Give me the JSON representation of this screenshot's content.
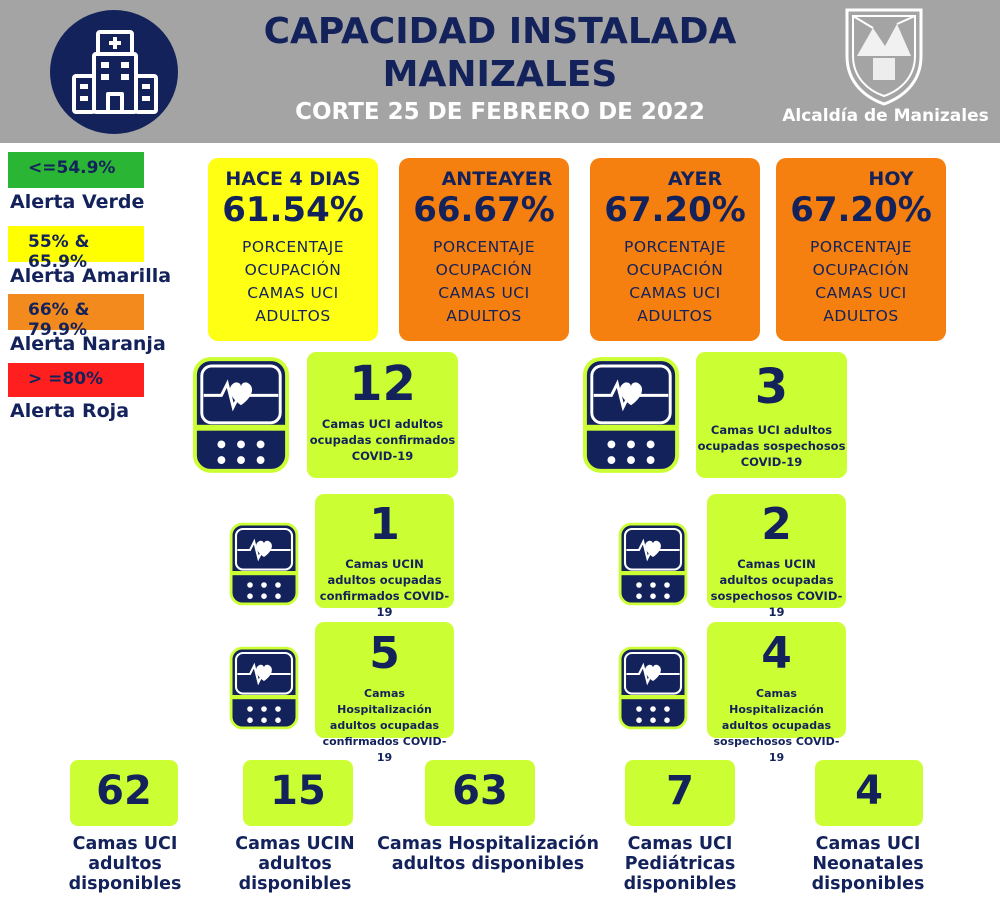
{
  "header": {
    "title_line1": "CAPACIDAD INSTALADA",
    "title_line2": "MANIZALES",
    "subtitle": "CORTE 25 DE FEBRERO DE 2022",
    "org": "Alcaldía de Manizales"
  },
  "legend": [
    {
      "range": "<=54.9%",
      "label": "Alerta Verde",
      "color": "#2bb534"
    },
    {
      "range": "55% & 65.9%",
      "label": "Alerta Amarilla",
      "color": "#ffff00"
    },
    {
      "range": "66% & 79.9%",
      "label": "Alerta Naranja",
      "color": "#f28a1d"
    },
    {
      "range": "> =80%",
      "label": "Alerta Roja",
      "color": "#ff1f1f"
    }
  ],
  "occupancy": [
    {
      "period": "HACE 4 DIAS",
      "value": "61.54%",
      "d1": "PORCENTAJE",
      "d2": "OCUPACIÓN",
      "d3": "CAMAS UCI",
      "d4": "ADULTOS",
      "color": "#ffff14"
    },
    {
      "period": "ANTEAYER",
      "value": "66.67%",
      "d1": "PORCENTAJE",
      "d2": "OCUPACIÓN",
      "d3": "CAMAS UCI",
      "d4": "ADULTOS",
      "color": "#f57f0f"
    },
    {
      "period": "AYER",
      "value": "67.20%",
      "d1": "PORCENTAJE",
      "d2": "OCUPACIÓN",
      "d3": "CAMAS UCI",
      "d4": "ADULTOS",
      "color": "#f57f0f"
    },
    {
      "period": "HOY",
      "value": "67.20%",
      "d1": "PORCENTAJE",
      "d2": "OCUPACIÓN",
      "d3": "CAMAS UCI",
      "d4": "ADULTOS",
      "color": "#f57f0f"
    }
  ],
  "stats": {
    "uci_conf": {
      "value": "12",
      "l1": "Camas UCI adultos",
      "l2": "ocupadas confirmados",
      "l3": "COVID-19"
    },
    "uci_sosp": {
      "value": "3",
      "l1": "Camas UCI adultos",
      "l2": "ocupadas sospechosos",
      "l3": "COVID-19"
    },
    "ucin_conf": {
      "value": "1",
      "l1": "Camas  UCIN",
      "l2": "adultos ocupadas",
      "l3": "confirmados COVID-19"
    },
    "ucin_sosp": {
      "value": "2",
      "l1": "Camas  UCIN",
      "l2": "adultos ocupadas",
      "l3": "sospechosos COVID-19"
    },
    "hosp_conf": {
      "value": "5",
      "l1": "Camas  Hospitalización",
      "l2": "adultos ocupadas",
      "l3": "confirmados COVID-19"
    },
    "hosp_sosp": {
      "value": "4",
      "l1": "Camas  Hospitalización",
      "l2": "adultos ocupadas",
      "l3": "sospechosos COVID-19"
    }
  },
  "available": [
    {
      "value": "62",
      "l1": "Camas UCI",
      "l2": "adultos",
      "l3": "disponibles"
    },
    {
      "value": "15",
      "l1": "Camas UCIN",
      "l2": "adultos",
      "l3": "disponibles"
    },
    {
      "value": "63",
      "l1": "Camas  Hospitalización",
      "l2": "adultos disponibles",
      "l3": ""
    },
    {
      "value": "7",
      "l1": "Camas  UCI",
      "l2": "Pediátricas",
      "l3": "disponibles"
    },
    {
      "value": "4",
      "l1": "Camas  UCI",
      "l2": "Neonatales",
      "l3": "disponibles"
    }
  ],
  "icons": {
    "hospital": "hospital-icon",
    "monitor": "heart-monitor-icon",
    "crest": "coat-of-arms-icon"
  }
}
